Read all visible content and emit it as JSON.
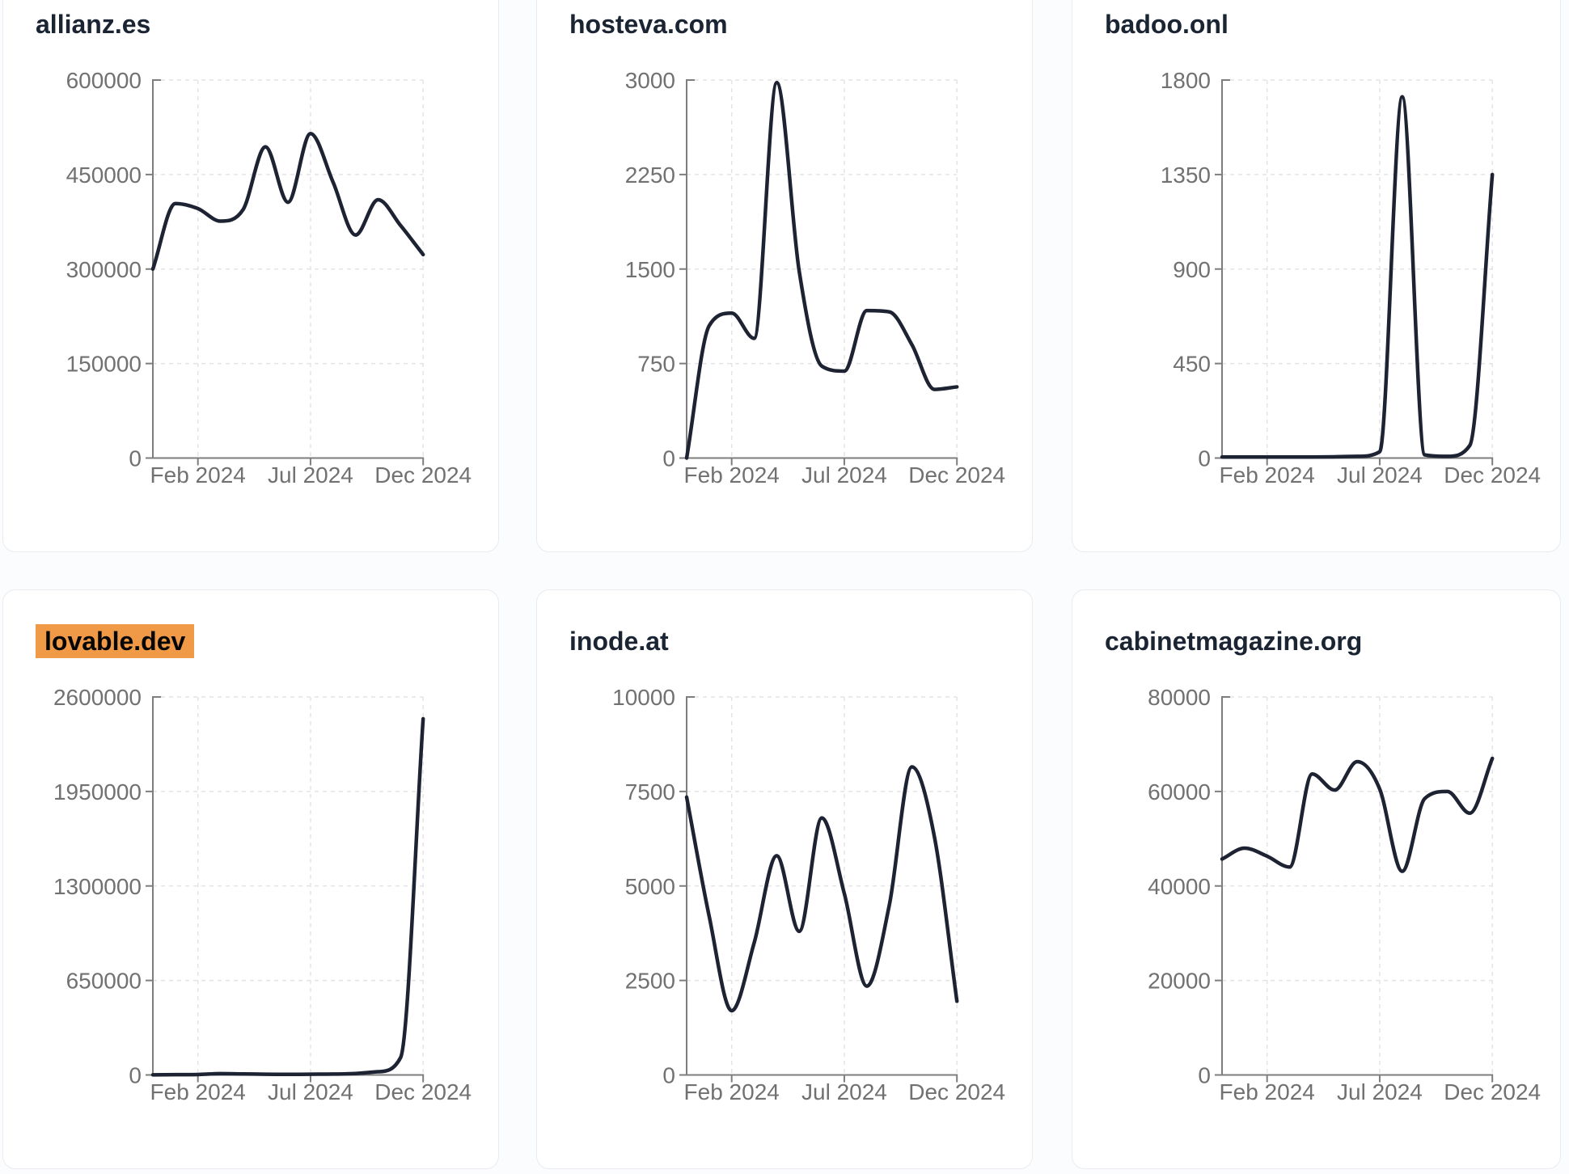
{
  "page": {
    "background": "#fbfcfd",
    "card_background": "#ffffff",
    "card_border_color": "#e9ebee",
    "line_color": "#1d2333",
    "axis_color": "#7e7e7e",
    "tick_label_color": "#717171",
    "grid_color": "#e4e4e6",
    "title_color": "#1a2433",
    "highlight_color": "#f09a47"
  },
  "chart_data": [
    {
      "type": "line",
      "title": "allianz.es",
      "highlighted": false,
      "x": [
        "2023-12",
        "2024-01",
        "2024-02",
        "2024-03",
        "2024-04",
        "2024-05",
        "2024-06",
        "2024-07",
        "2024-08",
        "2024-09",
        "2024-10",
        "2024-11",
        "2024-12"
      ],
      "values": [
        300000,
        404000,
        396000,
        376000,
        394000,
        494000,
        406000,
        515000,
        438000,
        354000,
        410000,
        369000,
        323000
      ],
      "ylim": [
        0,
        600000
      ],
      "y_ticks": [
        0,
        150000,
        300000,
        450000,
        600000
      ],
      "y_tick_labels": [
        "0",
        "150000",
        "300000",
        "450000",
        "600000"
      ],
      "x_tick_labels": [
        "Feb 2024",
        "Jul 2024",
        "Dec 2024"
      ],
      "grid": true,
      "legend": "none"
    },
    {
      "type": "line",
      "title": "hosteva.com",
      "highlighted": false,
      "x": [
        "2023-12",
        "2024-01",
        "2024-02",
        "2024-03",
        "2024-04",
        "2024-05",
        "2024-06",
        "2024-07",
        "2024-08",
        "2024-09",
        "2024-10",
        "2024-11",
        "2024-12"
      ],
      "values": [
        0,
        1050,
        1150,
        950,
        2980,
        1480,
        730,
        690,
        1170,
        1160,
        900,
        545,
        565
      ],
      "ylim": [
        0,
        3000
      ],
      "y_ticks": [
        0,
        750,
        1500,
        2250,
        3000
      ],
      "y_tick_labels": [
        "0",
        "750",
        "1500",
        "2250",
        "3000"
      ],
      "x_tick_labels": [
        "Feb 2024",
        "Jul 2024",
        "Dec 2024"
      ],
      "grid": true,
      "legend": "none"
    },
    {
      "type": "line",
      "title": "badoo.onl",
      "highlighted": false,
      "x": [
        "2023-12",
        "2024-01",
        "2024-02",
        "2024-03",
        "2024-04",
        "2024-05",
        "2024-06",
        "2024-07",
        "2024-08",
        "2024-09",
        "2024-10",
        "2024-11",
        "2024-12"
      ],
      "values": [
        5,
        5,
        5,
        5,
        5,
        6,
        8,
        30,
        1720,
        15,
        8,
        60,
        1350
      ],
      "ylim": [
        0,
        1800
      ],
      "y_ticks": [
        0,
        450,
        900,
        1350,
        1800
      ],
      "y_tick_labels": [
        "0",
        "450",
        "900",
        "1350",
        "1800"
      ],
      "x_tick_labels": [
        "Feb 2024",
        "Jul 2024",
        "Dec 2024"
      ],
      "grid": true,
      "legend": "none"
    },
    {
      "type": "line",
      "title": "lovable.dev",
      "highlighted": true,
      "x": [
        "2023-12",
        "2024-01",
        "2024-02",
        "2024-03",
        "2024-04",
        "2024-05",
        "2024-06",
        "2024-07",
        "2024-08",
        "2024-09",
        "2024-10",
        "2024-11",
        "2024-12"
      ],
      "values": [
        1000,
        2000,
        3000,
        9000,
        7000,
        5000,
        4000,
        5000,
        6000,
        10000,
        22000,
        120000,
        2450000
      ],
      "ylim": [
        0,
        2600000
      ],
      "y_ticks": [
        0,
        650000,
        1300000,
        1950000,
        2600000
      ],
      "y_tick_labels": [
        "0",
        "650000",
        "1300000",
        "1950000",
        "2600000"
      ],
      "x_tick_labels": [
        "Feb 2024",
        "Jul 2024",
        "Dec 2024"
      ],
      "grid": true,
      "legend": "none"
    },
    {
      "type": "line",
      "title": "inode.at",
      "highlighted": false,
      "x": [
        "2023-12",
        "2024-01",
        "2024-02",
        "2024-03",
        "2024-04",
        "2024-05",
        "2024-06",
        "2024-07",
        "2024-08",
        "2024-09",
        "2024-10",
        "2024-11",
        "2024-12"
      ],
      "values": [
        7350,
        4200,
        1700,
        3500,
        5800,
        3800,
        6800,
        4800,
        2350,
        4500,
        8150,
        6300,
        1950
      ],
      "ylim": [
        0,
        10000
      ],
      "y_ticks": [
        0,
        2500,
        5000,
        7500,
        10000
      ],
      "y_tick_labels": [
        "0",
        "2500",
        "5000",
        "7500",
        "10000"
      ],
      "x_tick_labels": [
        "Feb 2024",
        "Jul 2024",
        "Dec 2024"
      ],
      "grid": true,
      "legend": "none"
    },
    {
      "type": "line",
      "title": "cabinetmagazine.org",
      "highlighted": false,
      "x": [
        "2023-12",
        "2024-01",
        "2024-02",
        "2024-03",
        "2024-04",
        "2024-05",
        "2024-06",
        "2024-07",
        "2024-08",
        "2024-09",
        "2024-10",
        "2024-11",
        "2024-12"
      ],
      "values": [
        45700,
        48000,
        46300,
        44000,
        63700,
        60300,
        66300,
        60500,
        43100,
        58500,
        60000,
        55400,
        67000
      ],
      "ylim": [
        0,
        80000
      ],
      "y_ticks": [
        0,
        20000,
        40000,
        60000,
        80000
      ],
      "y_tick_labels": [
        "0",
        "20000",
        "40000",
        "60000",
        "80000"
      ],
      "x_tick_labels": [
        "Feb 2024",
        "Jul 2024",
        "Dec 2024"
      ],
      "grid": true,
      "legend": "none"
    }
  ]
}
